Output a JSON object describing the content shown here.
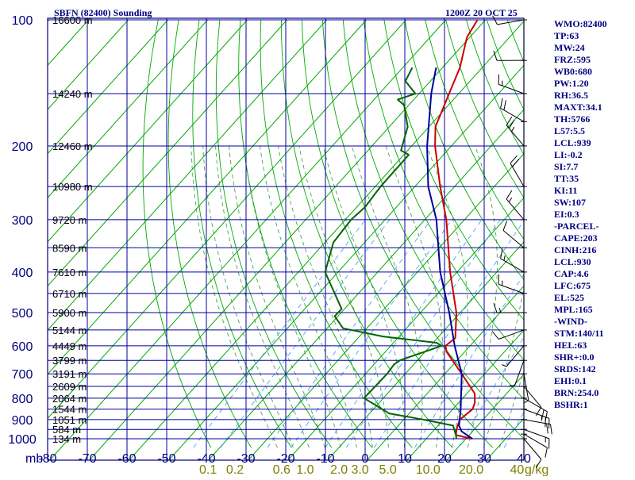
{
  "title": "SBFN (82400) Sounding",
  "valid_time": "1200Z 20 OCT 25",
  "indices": [
    "WMO:82400",
    "TP:63",
    "MW:24",
    "FRZ:595",
    "WB0:680",
    "PW:1.20",
    "RH:36.5",
    "MAXT:34.1",
    "TH:5766",
    "L57:5.5",
    "LCL:939",
    "LI:-0.2",
    "SI:7.7",
    "TT:35",
    "KI:11",
    "SW:107",
    "EI:0.3",
    "-PARCEL-",
    "CAPE:203",
    "CINH:216",
    "LCL:930",
    "CAP:4.6",
    "LFC:675",
    "EL:525",
    "MPL:165",
    "-WIND-",
    "STM:140/11",
    "HEL:63",
    "SHR+:0.0",
    "SRDS:142",
    "EHI:0.1",
    "BRN:254.0",
    "BSHR:1"
  ],
  "colors": {
    "frame": "#000080",
    "grid": "#0000a0",
    "isotherm": "#00aa00",
    "dry_adiabat": "#00aa00",
    "moist_adiabat": "#228b22",
    "mixing_ratio": "#4f9fff",
    "temperature": "#cc0000",
    "dewpoint": "#006400",
    "parcel": "#00009a",
    "wind_barb": "#000000",
    "mixing_label": "#808000"
  },
  "chart_data": {
    "type": "skew-t log-p sounding",
    "pressure_axis": {
      "unit": "mb",
      "range": [
        1000,
        100
      ],
      "scale": "log",
      "ticks": [
        1000,
        900,
        800,
        700,
        600,
        500,
        400,
        300,
        200,
        100
      ]
    },
    "temperature_axis": {
      "unit": "°C",
      "range": [
        -80,
        40
      ],
      "ticks": [
        -80,
        -70,
        -60,
        -50,
        -40,
        -30,
        -20,
        -10,
        0,
        10,
        20,
        30,
        40
      ],
      "tick_labels": [
        "-80",
        "-70",
        "-60",
        "-50",
        "-40",
        "-30",
        "-20",
        "-10",
        "0",
        "10",
        "20",
        "30",
        "40"
      ]
    },
    "axis_label": "mb",
    "height_labels": [
      {
        "p": 1000,
        "label": "134 m"
      },
      {
        "p": 950,
        "label": "584 m"
      },
      {
        "p": 900,
        "label": "1051 m"
      },
      {
        "p": 850,
        "label": "1544 m"
      },
      {
        "p": 800,
        "label": "2064 m"
      },
      {
        "p": 750,
        "label": "2609 m"
      },
      {
        "p": 700,
        "label": "3191 m"
      },
      {
        "p": 650,
        "label": "3799 m"
      },
      {
        "p": 600,
        "label": "4449 m"
      },
      {
        "p": 550,
        "label": "5144 m"
      },
      {
        "p": 500,
        "label": "5900 m"
      },
      {
        "p": 450,
        "label": "6710 m"
      },
      {
        "p": 400,
        "label": "7610 m"
      },
      {
        "p": 350,
        "label": "8590 m"
      },
      {
        "p": 300,
        "label": "9720 m"
      },
      {
        "p": 250,
        "label": "10980 m"
      },
      {
        "p": 200,
        "label": "12460 m"
      },
      {
        "p": 150,
        "label": "14240 m"
      },
      {
        "p": 100,
        "label": "16600 m"
      }
    ],
    "mixing_ratio_labels": [
      {
        "w": 0.1,
        "label": "0.1"
      },
      {
        "w": 0.2,
        "label": "0.2"
      },
      {
        "w": 0.6,
        "label": "0.6"
      },
      {
        "w": 1.0,
        "label": "1.0"
      },
      {
        "w": 2.0,
        "label": "2.0"
      },
      {
        "w": 3.0,
        "label": "3.0"
      },
      {
        "w": 5.0,
        "label": "5.0"
      },
      {
        "w": 10.0,
        "label": "10.0"
      },
      {
        "w": 20.0,
        "label": "20.0"
      },
      {
        "w": 40.0,
        "label": "40"
      }
    ],
    "mixing_ratio_unit": "g/kg",
    "series": [
      {
        "name": "temperature",
        "points": [
          {
            "p": 1000,
            "t": 27.0
          },
          {
            "p": 980,
            "t": 22.0
          },
          {
            "p": 950,
            "t": 20.8
          },
          {
            "p": 925,
            "t": 20.0
          },
          {
            "p": 900,
            "t": 19.3
          },
          {
            "p": 850,
            "t": 20.0
          },
          {
            "p": 820,
            "t": 19.0
          },
          {
            "p": 780,
            "t": 16.8
          },
          {
            "p": 700,
            "t": 8.8
          },
          {
            "p": 620,
            "t": -0.3
          },
          {
            "p": 600,
            "t": -2.0
          },
          {
            "p": 575,
            "t": -1.4
          },
          {
            "p": 500,
            "t": -7.2
          },
          {
            "p": 400,
            "t": -18.5
          },
          {
            "p": 300,
            "t": -32.0
          },
          {
            "p": 250,
            "t": -41.5
          },
          {
            "p": 200,
            "t": -52.5
          },
          {
            "p": 180,
            "t": -57.0
          },
          {
            "p": 150,
            "t": -61.5
          },
          {
            "p": 130,
            "t": -65.0
          },
          {
            "p": 110,
            "t": -70.5
          },
          {
            "p": 100,
            "t": -72.0
          }
        ]
      },
      {
        "name": "dewpoint",
        "points": [
          {
            "p": 1000,
            "t": 23.0
          },
          {
            "p": 980,
            "t": 22.0
          },
          {
            "p": 930,
            "t": 19.0
          },
          {
            "p": 900,
            "t": 10.0
          },
          {
            "p": 870,
            "t": 0.0
          },
          {
            "p": 800,
            "t": -10.0
          },
          {
            "p": 700,
            "t": -10.0
          },
          {
            "p": 665,
            "t": -10.5
          },
          {
            "p": 650,
            "t": -10.0
          },
          {
            "p": 600,
            "t": -3.0
          },
          {
            "p": 590,
            "t": -5.0
          },
          {
            "p": 570,
            "t": -20.0
          },
          {
            "p": 545,
            "t": -32.0
          },
          {
            "p": 510,
            "t": -37.0
          },
          {
            "p": 490,
            "t": -37.0
          },
          {
            "p": 400,
            "t": -50.0
          },
          {
            "p": 340,
            "t": -55.0
          },
          {
            "p": 300,
            "t": -56.0
          },
          {
            "p": 280,
            "t": -55.5
          },
          {
            "p": 250,
            "t": -56.5
          },
          {
            "p": 210,
            "t": -57.0
          },
          {
            "p": 205,
            "t": -60.0
          },
          {
            "p": 180,
            "t": -64.0
          },
          {
            "p": 160,
            "t": -70.0
          },
          {
            "p": 155,
            "t": -73.0
          },
          {
            "p": 150,
            "t": -70.0
          },
          {
            "p": 140,
            "t": -75.5
          },
          {
            "p": 130,
            "t": -77.0
          }
        ]
      },
      {
        "name": "parcel",
        "points": [
          {
            "p": 1000,
            "t": 27.0
          },
          {
            "p": 960,
            "t": 22.5
          },
          {
            "p": 930,
            "t": 20.5
          },
          {
            "p": 850,
            "t": 17.0
          },
          {
            "p": 700,
            "t": 8.8
          },
          {
            "p": 600,
            "t": 0.3
          },
          {
            "p": 500,
            "t": -9.0
          },
          {
            "p": 400,
            "t": -21.0
          },
          {
            "p": 300,
            "t": -34.5
          },
          {
            "p": 250,
            "t": -44.5
          },
          {
            "p": 200,
            "t": -54.5
          },
          {
            "p": 150,
            "t": -66.0
          },
          {
            "p": 130,
            "t": -71.0
          }
        ]
      }
    ],
    "wind_profile": [
      {
        "p": 1000,
        "dir": 140,
        "spd": 10
      },
      {
        "p": 975,
        "dir": 120,
        "spd": 10
      },
      {
        "p": 950,
        "dir": 110,
        "spd": 15
      },
      {
        "p": 900,
        "dir": 100,
        "spd": 20
      },
      {
        "p": 850,
        "dir": 110,
        "spd": 25
      },
      {
        "p": 800,
        "dir": 120,
        "spd": 20
      },
      {
        "p": 750,
        "dir": 140,
        "spd": 10
      },
      {
        "p": 700,
        "dir": 170,
        "spd": 5
      },
      {
        "p": 650,
        "dir": 200,
        "spd": 5
      },
      {
        "p": 600,
        "dir": 220,
        "spd": 5
      },
      {
        "p": 550,
        "dir": 250,
        "spd": 10
      },
      {
        "p": 500,
        "dir": 270,
        "spd": 15
      },
      {
        "p": 450,
        "dir": 290,
        "spd": 15
      },
      {
        "p": 400,
        "dir": 300,
        "spd": 15
      },
      {
        "p": 350,
        "dir": 310,
        "spd": 10
      },
      {
        "p": 300,
        "dir": 320,
        "spd": 15
      },
      {
        "p": 250,
        "dir": 330,
        "spd": 20
      },
      {
        "p": 200,
        "dir": 320,
        "spd": 25
      },
      {
        "p": 175,
        "dir": 300,
        "spd": 20
      },
      {
        "p": 150,
        "dir": 290,
        "spd": 15
      },
      {
        "p": 125,
        "dir": 270,
        "spd": 10
      },
      {
        "p": 100,
        "dir": 260,
        "spd": 10
      }
    ],
    "grid": true
  }
}
